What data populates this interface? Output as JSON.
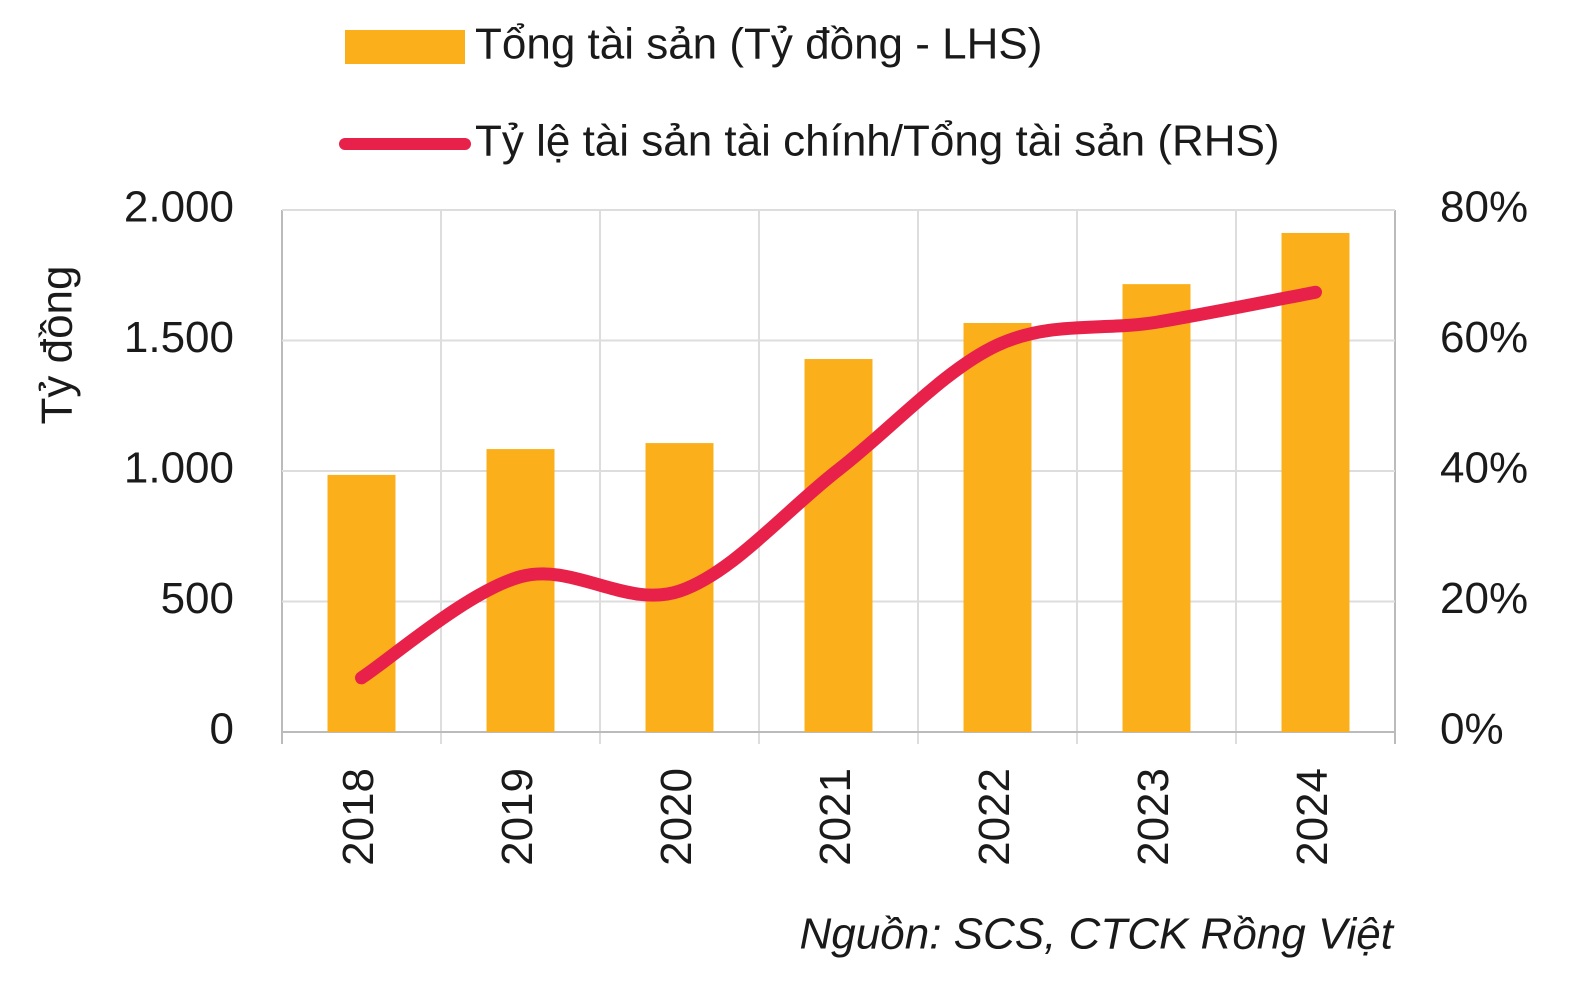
{
  "chart_data": {
    "type": "bar-line",
    "y_label": "Tỷ đồng",
    "source": "Nguồn: SCS, CTCK Rồng Việt",
    "categories": [
      "2018",
      "2019",
      "2020",
      "2021",
      "2022",
      "2023",
      "2024"
    ],
    "series": [
      {
        "name": "Tổng tài sản (Tỷ đồng - LHS)",
        "type": "bar",
        "color": "#fbb01b",
        "values": [
          985,
          1084,
          1107,
          1429,
          1567,
          1716,
          1912
        ]
      },
      {
        "name": "Tỷ lệ tài sản tài chính/Tổng tài sản (RHS)",
        "type": "line",
        "axis": "y2",
        "color": "#e8214a",
        "values": [
          8.3,
          23.8,
          21.6,
          40.2,
          59.3,
          62.8,
          67.4
        ]
      }
    ],
    "ylim": [
      0,
      2000
    ],
    "yticks": [
      0,
      500,
      {
        "value": 1000,
        "label": "1.000"
      },
      {
        "value": 1500,
        "label": "1.500"
      },
      {
        "value": 2000,
        "label": "2.000"
      }
    ],
    "y2lim": [
      0,
      80
    ],
    "y2ticks": [
      {
        "value": 0,
        "label": "0%"
      },
      {
        "value": 20,
        "label": "20%"
      },
      {
        "value": 40,
        "label": "40%"
      },
      {
        "value": 60,
        "label": "60%"
      },
      {
        "value": 80,
        "label": "80%"
      }
    ],
    "grid": true
  }
}
